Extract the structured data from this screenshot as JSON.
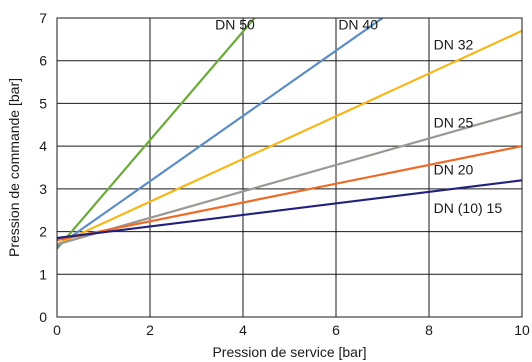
{
  "chart_data": {
    "type": "line",
    "xlabel": "Pression de service [bar]",
    "ylabel": "Pression de commande [bar]",
    "xlim": [
      0,
      10
    ],
    "ylim": [
      0,
      7
    ],
    "x_ticks": [
      0,
      2,
      4,
      6,
      8,
      10
    ],
    "y_ticks": [
      0,
      1,
      2,
      3,
      4,
      5,
      6,
      7
    ],
    "grid": true,
    "legend": "inline labels",
    "series": [
      {
        "name": "DN 50",
        "color": "#6aaa3a",
        "points": [
          [
            0,
            1.6
          ],
          [
            4.25,
            7
          ]
        ]
      },
      {
        "name": "DN 40",
        "color": "#5b8ec5",
        "points": [
          [
            0,
            1.65
          ],
          [
            7.0,
            7
          ]
        ]
      },
      {
        "name": "DN 32",
        "color": "#f7b719",
        "points": [
          [
            0,
            1.7
          ],
          [
            10,
            6.7
          ]
        ]
      },
      {
        "name": "DN 25",
        "color": "#9a9893",
        "points": [
          [
            0,
            1.7
          ],
          [
            10,
            4.8
          ]
        ]
      },
      {
        "name": "DN 20",
        "color": "#ee6a26",
        "points": [
          [
            0,
            1.8
          ],
          [
            10,
            4.0
          ]
        ]
      },
      {
        "name": "DN (10) 15",
        "color": "#23207e",
        "points": [
          [
            0,
            1.85
          ],
          [
            10,
            3.2
          ]
        ]
      }
    ],
    "labels": [
      {
        "series": "DN 50",
        "text": "DN 50",
        "at": [
          3.4,
          6.85
        ]
      },
      {
        "series": "DN 40",
        "text": "DN 40",
        "at": [
          6.05,
          6.85
        ]
      },
      {
        "series": "DN 32",
        "text": "DN 32",
        "at": [
          8.1,
          6.38
        ]
      },
      {
        "series": "DN 25",
        "text": "DN 25",
        "at": [
          8.1,
          4.55
        ]
      },
      {
        "series": "DN 20",
        "text": "DN 20",
        "at": [
          8.1,
          3.45
        ]
      },
      {
        "series": "DN (10) 15",
        "text": "DN (10) 15",
        "at": [
          8.1,
          2.55
        ]
      }
    ]
  }
}
